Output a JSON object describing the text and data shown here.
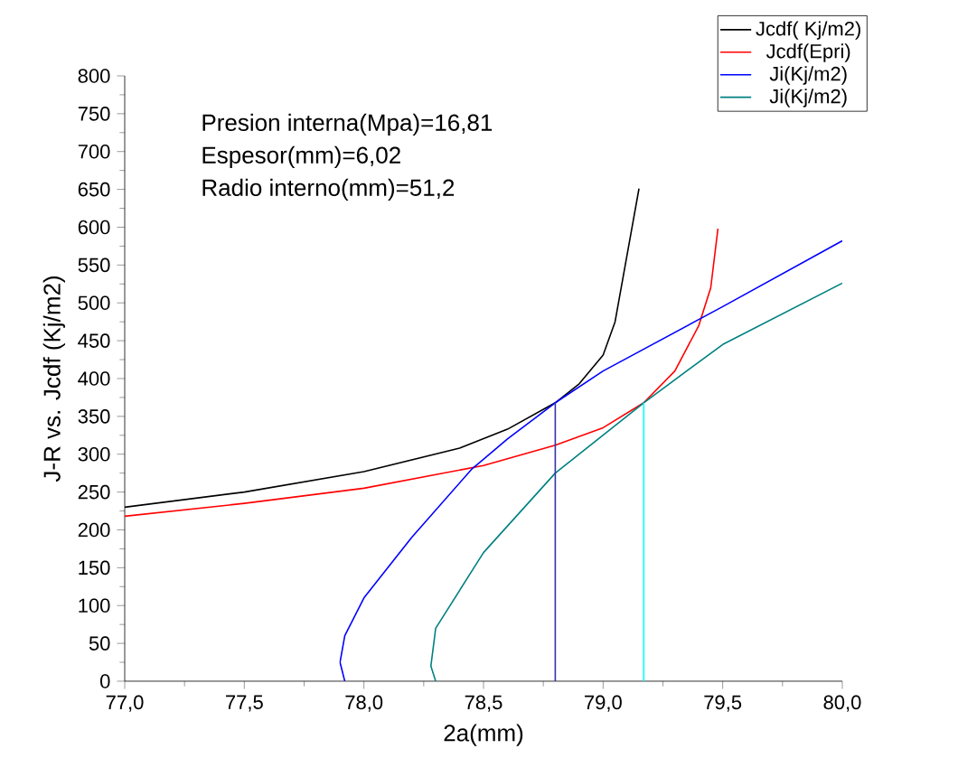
{
  "chart_data": {
    "type": "line",
    "xlabel": "2a(mm)",
    "ylabel": "J-R vs. Jcdf (Kj/m2)",
    "annotations": [
      "Presion interna(Mpa)=16,81",
      "Espesor(mm)=6,02",
      "Radio interno(mm)=51,2"
    ],
    "xlim": [
      77,
      80
    ],
    "ylim": [
      0,
      800
    ],
    "xticks": [
      {
        "value": 77,
        "label": "77,0"
      },
      {
        "value": 77.5,
        "label": "77,5"
      },
      {
        "value": 78,
        "label": "78,0"
      },
      {
        "value": 78.5,
        "label": "78,5"
      },
      {
        "value": 79,
        "label": "79,0"
      },
      {
        "value": 79.5,
        "label": "79,5"
      },
      {
        "value": 80,
        "label": "80,0"
      }
    ],
    "yticks": [
      0,
      50,
      100,
      150,
      200,
      250,
      300,
      350,
      400,
      450,
      500,
      550,
      600,
      650,
      700,
      750,
      800
    ],
    "legend": "top right",
    "grid": false,
    "series": [
      {
        "name": "Jcdf( Kj/m2)",
        "color": "#000000",
        "x": [
          77.0,
          77.5,
          78.0,
          78.4,
          78.6,
          78.8,
          78.9,
          79.0,
          79.05,
          79.15
        ],
        "values": [
          230,
          250,
          277,
          308,
          333,
          368,
          393,
          431,
          475,
          651
        ]
      },
      {
        "name": "Jcdf(Epri)",
        "color": "#ff0000",
        "x": [
          77.0,
          77.5,
          78.0,
          78.5,
          78.8,
          79.0,
          79.17,
          79.3,
          79.4,
          79.45,
          79.48
        ],
        "values": [
          218,
          235,
          255,
          285,
          312,
          335,
          368,
          410,
          470,
          520,
          598
        ]
      },
      {
        "name": "Ji(Kj/m2)",
        "color": "#0000ff",
        "x": [
          77.92,
          77.9,
          77.92,
          78.0,
          78.2,
          78.45,
          78.6,
          78.8,
          79.0,
          79.5,
          80.0
        ],
        "values": [
          0,
          25,
          60,
          110,
          190,
          280,
          320,
          368,
          410,
          495,
          582
        ]
      },
      {
        "name": "Ji(Kj/m2)",
        "color": "#008080",
        "x": [
          78.3,
          78.28,
          78.3,
          78.5,
          78.8,
          79.17,
          79.5,
          80.0
        ],
        "values": [
          0,
          20,
          70,
          170,
          275,
          368,
          445,
          526
        ]
      },
      {
        "color": "#3333aa",
        "x": [
          78.8,
          78.8
        ],
        "values": [
          0,
          368
        ]
      },
      {
        "color": "#00ffff",
        "x": [
          79.17,
          79.17
        ],
        "values": [
          0,
          368
        ]
      }
    ]
  }
}
